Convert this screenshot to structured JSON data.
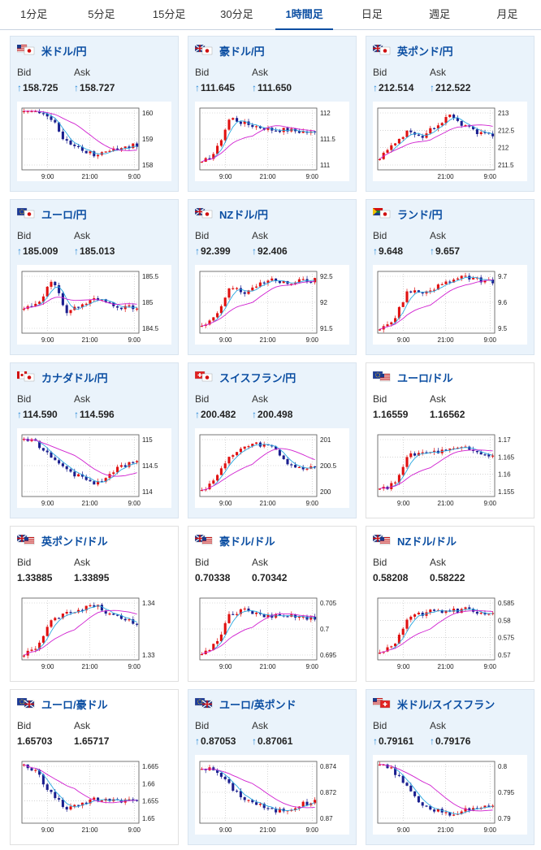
{
  "tabs": [
    {
      "label": "1分足",
      "active": false
    },
    {
      "label": "5分足",
      "active": false
    },
    {
      "label": "15分足",
      "active": false
    },
    {
      "label": "30分足",
      "active": false
    },
    {
      "label": "1時間足",
      "active": true
    },
    {
      "label": "日足",
      "active": false
    },
    {
      "label": "週足",
      "active": false
    },
    {
      "label": "月足",
      "active": false
    }
  ],
  "labels": {
    "bid": "Bid",
    "ask": "Ask",
    "up_arrow": "↑"
  },
  "colors": {
    "accent": "#0b4ea2",
    "card_bg": "#eaf3fb",
    "up": "#e01010",
    "down": "#1a1f8f",
    "ma_short": "#2aa8e0",
    "ma_long": "#d020d0",
    "up_arrow": "#2a8ad8"
  },
  "pairs": [
    {
      "name": "米ドル/円",
      "bid": "158.725",
      "ask": "158.727",
      "arrow": true,
      "flag": "us-jp-flags-icon",
      "chart_data": {
        "type": "candlestick",
        "xticks": [
          "9:00",
          "21:00",
          "9:00"
        ],
        "yticks": [
          "160",
          "159",
          "158"
        ],
        "ylim": [
          157.9,
          160.2
        ],
        "shape": [
          1.0,
          0.95,
          0.8,
          0.45,
          0.35,
          0.25,
          0.3,
          0.38,
          0.4
        ],
        "ma": "down"
      }
    },
    {
      "name": "豪ドル/円",
      "bid": "111.645",
      "ask": "111.650",
      "arrow": true,
      "flag": "au-jp-flags-icon",
      "chart_data": {
        "type": "candlestick",
        "xticks": [
          "9:00",
          "21:00",
          "9:00"
        ],
        "yticks": [
          "112",
          "111.5",
          "111"
        ],
        "ylim": [
          110.7,
          112.3
        ],
        "shape": [
          0.1,
          0.3,
          0.85,
          0.75,
          0.7,
          0.65,
          0.65,
          0.62,
          0.6
        ],
        "ma": "up"
      }
    },
    {
      "name": "英ポンド/円",
      "bid": "212.514",
      "ask": "212.522",
      "arrow": true,
      "flag": "gb-jp-flags-icon",
      "chart_data": {
        "type": "candlestick",
        "xticks": [
          "21:00",
          "9:00"
        ],
        "yticks": [
          "213",
          "212.5",
          "212",
          "211.5"
        ],
        "ylim": [
          211.4,
          213.2
        ],
        "shape": [
          0.2,
          0.4,
          0.65,
          0.55,
          0.7,
          0.9,
          0.7,
          0.6,
          0.58
        ],
        "ma": "up"
      }
    },
    {
      "name": "ユーロ/円",
      "bid": "185.009",
      "ask": "185.013",
      "arrow": true,
      "flag": "eu-jp-flags-icon",
      "chart_data": {
        "type": "candlestick",
        "xticks": [
          "9:00",
          "21:00",
          "9:00"
        ],
        "yticks": [
          "185.5",
          "185",
          "184.5"
        ],
        "ylim": [
          184.4,
          185.7
        ],
        "shape": [
          0.4,
          0.5,
          0.85,
          0.35,
          0.45,
          0.55,
          0.5,
          0.42,
          0.4
        ],
        "ma": "up"
      }
    },
    {
      "name": "NZドル/円",
      "bid": "92.399",
      "ask": "92.406",
      "arrow": true,
      "flag": "nz-jp-flags-icon",
      "chart_data": {
        "type": "candlestick",
        "xticks": [
          "9:00",
          "21:00",
          "9:00"
        ],
        "yticks": [
          "92.5",
          "92",
          "91.5"
        ],
        "ylim": [
          91.1,
          92.6
        ],
        "shape": [
          0.1,
          0.25,
          0.75,
          0.65,
          0.8,
          0.85,
          0.82,
          0.84,
          0.86
        ],
        "ma": "up"
      }
    },
    {
      "name": "ランド/円",
      "bid": "9.648",
      "ask": "9.657",
      "arrow": true,
      "flag": "za-jp-flags-icon",
      "chart_data": {
        "type": "candlestick",
        "xticks": [
          "9:00",
          "21:00",
          "9:00"
        ],
        "yticks": [
          "9.7",
          "9.6",
          "9.5"
        ],
        "ylim": [
          9.42,
          9.72
        ],
        "shape": [
          0.1,
          0.2,
          0.7,
          0.65,
          0.75,
          0.85,
          0.9,
          0.87,
          0.82
        ],
        "ma": "up"
      }
    },
    {
      "name": "カナダドル/円",
      "bid": "114.590",
      "ask": "114.596",
      "arrow": true,
      "flag": "ca-jp-flags-icon",
      "chart_data": {
        "type": "candlestick",
        "xticks": [
          "9:00",
          "21:00",
          "9:00"
        ],
        "yticks": [
          "115",
          "114.5",
          "114"
        ],
        "ylim": [
          113.9,
          115.2
        ],
        "shape": [
          0.95,
          0.85,
          0.6,
          0.45,
          0.3,
          0.2,
          0.35,
          0.5,
          0.55
        ],
        "ma": "down"
      }
    },
    {
      "name": "スイスフラン/円",
      "bid": "200.482",
      "ask": "200.498",
      "arrow": true,
      "flag": "ch-jp-flags-icon",
      "chart_data": {
        "type": "candlestick",
        "xticks": [
          "9:00",
          "21:00",
          "9:00"
        ],
        "yticks": [
          "201",
          "200.5",
          "200"
        ],
        "ylim": [
          199.8,
          201.1
        ],
        "shape": [
          0.1,
          0.3,
          0.65,
          0.8,
          0.85,
          0.8,
          0.55,
          0.45,
          0.5
        ],
        "ma": "up"
      }
    },
    {
      "name": "ユーロ/ドル",
      "bid": "1.16559",
      "ask": "1.16562",
      "arrow": false,
      "flag": "eu-us-flags-icon",
      "chart_data": {
        "type": "candlestick",
        "xticks": [
          "9:00",
          "21:00",
          "9:00"
        ],
        "yticks": [
          "1.17",
          "1.165",
          "1.16",
          "1.155"
        ],
        "ylim": [
          1.153,
          1.172
        ],
        "shape": [
          0.1,
          0.2,
          0.65,
          0.7,
          0.72,
          0.75,
          0.78,
          0.7,
          0.65
        ],
        "ma": "up"
      }
    },
    {
      "name": "英ポンド/ドル",
      "bid": "1.33885",
      "ask": "1.33895",
      "arrow": false,
      "flag": "gb-us-flags-icon",
      "chart_data": {
        "type": "candlestick",
        "xticks": [
          "9:00",
          "21:00",
          "9:00"
        ],
        "yticks": [
          "1.34",
          "1.33"
        ],
        "ylim": [
          1.326,
          1.345
        ],
        "shape": [
          0.1,
          0.2,
          0.65,
          0.75,
          0.8,
          0.9,
          0.75,
          0.65,
          0.6
        ],
        "ma": "up"
      }
    },
    {
      "name": "豪ドル/ドル",
      "bid": "0.70338",
      "ask": "0.70342",
      "arrow": false,
      "flag": "au-us-flags-icon",
      "chart_data": {
        "type": "candlestick",
        "xticks": [
          "9:00",
          "21:00",
          "9:00"
        ],
        "yticks": [
          "0.705",
          "0.7",
          "0.695"
        ],
        "ylim": [
          0.692,
          0.708
        ],
        "shape": [
          0.1,
          0.25,
          0.75,
          0.8,
          0.75,
          0.7,
          0.72,
          0.7,
          0.65
        ],
        "ma": "up"
      }
    },
    {
      "name": "NZドル/ドル",
      "bid": "0.58208",
      "ask": "0.58222",
      "arrow": false,
      "flag": "nz-us-flags-icon",
      "chart_data": {
        "type": "candlestick",
        "xticks": [
          "9:00",
          "21:00",
          "9:00"
        ],
        "yticks": [
          "0.585",
          "0.58",
          "0.575",
          "0.57"
        ],
        "ylim": [
          0.569,
          0.587
        ],
        "shape": [
          0.1,
          0.25,
          0.65,
          0.75,
          0.8,
          0.78,
          0.82,
          0.75,
          0.72
        ],
        "ma": "up"
      }
    },
    {
      "name": "ユーロ/豪ドル",
      "bid": "1.65703",
      "ask": "1.65717",
      "arrow": false,
      "flag": "eu-au-flags-icon",
      "chart_data": {
        "type": "candlestick",
        "xticks": [
          "9:00",
          "21:00",
          "9:00"
        ],
        "yticks": [
          "1.665",
          "1.66",
          "1.655",
          "1.65"
        ],
        "ylim": [
          1.648,
          1.667
        ],
        "shape": [
          0.95,
          0.8,
          0.45,
          0.25,
          0.3,
          0.4,
          0.35,
          0.35,
          0.38
        ],
        "ma": "down"
      }
    },
    {
      "name": "ユーロ/英ポンド",
      "bid": "0.87053",
      "ask": "0.87061",
      "arrow": true,
      "flag": "eu-gb-flags-icon",
      "chart_data": {
        "type": "candlestick",
        "xticks": [
          "9:00",
          "21:00",
          "9:00"
        ],
        "yticks": [
          "0.874",
          "0.872",
          "0.87"
        ],
        "ylim": [
          0.8685,
          0.8745
        ],
        "shape": [
          0.9,
          0.85,
          0.6,
          0.4,
          0.3,
          0.2,
          0.22,
          0.3,
          0.35
        ],
        "ma": "down"
      }
    },
    {
      "name": "米ドル/スイスフラン",
      "bid": "0.79161",
      "ask": "0.79176",
      "arrow": true,
      "flag": "us-ch-flags-icon",
      "chart_data": {
        "type": "candlestick",
        "xticks": [
          "9:00",
          "21:00",
          "9:00"
        ],
        "yticks": [
          "0.8",
          "0.795",
          "0.79"
        ],
        "ylim": [
          0.7875,
          0.8005
        ],
        "shape": [
          0.95,
          0.85,
          0.55,
          0.3,
          0.2,
          0.15,
          0.2,
          0.28,
          0.3
        ],
        "ma": "down"
      }
    }
  ]
}
